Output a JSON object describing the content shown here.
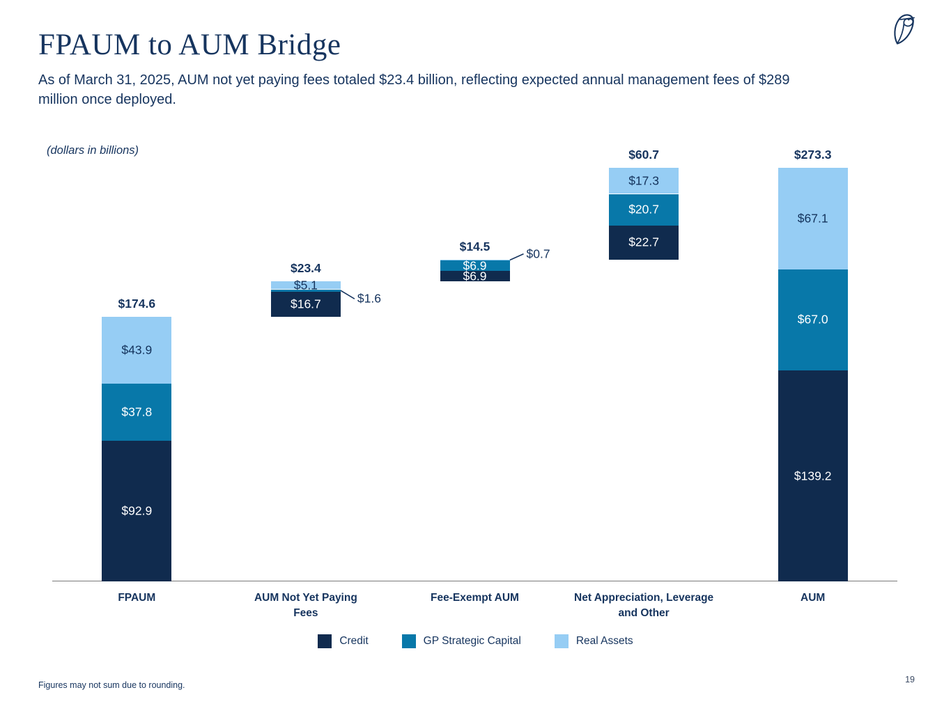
{
  "header": {
    "title": "FPAUM to AUM Bridge",
    "subtitle_lines": [
      "As of March 31, 2025, AUM not yet paying fees totaled $23.4 billion, reflecting expected annual management fees of $289",
      "million once deployed."
    ]
  },
  "chart_data": {
    "type": "bar",
    "variant": "stacked_bridge_waterfall",
    "title": "FPAUM to AUM Bridge",
    "units_note": "(dollars in billions)",
    "grid": false,
    "legend_position": "bottom",
    "ylim": [
      0,
      292
    ],
    "series": [
      {
        "name": "Credit",
        "color": "#102B4E",
        "label_color": "#FFFFFF"
      },
      {
        "name": "GP Strategic Capital",
        "color": "#0878A9",
        "label_color": "#FFFFFF"
      },
      {
        "name": "Real Assets",
        "color": "#96CDF4",
        "label_color": "#14335C"
      }
    ],
    "bars": [
      {
        "category": "FPAUM",
        "category_lines": [
          "FPAUM"
        ],
        "kind": "start",
        "total": 174.6,
        "total_label": "$174.6",
        "segments": [
          {
            "series": "Credit",
            "value": 92.9,
            "label": "$92.9",
            "label_pos": "inside"
          },
          {
            "series": "GP Strategic Capital",
            "value": 37.8,
            "label": "$37.8",
            "label_pos": "inside"
          },
          {
            "series": "Real Assets",
            "value": 43.9,
            "label": "$43.9",
            "label_pos": "inside"
          }
        ]
      },
      {
        "category": "AUM Not Yet Paying Fees",
        "category_lines": [
          "AUM Not Yet Paying",
          "Fees"
        ],
        "kind": "float",
        "total": 23.4,
        "total_label": "$23.4",
        "segments": [
          {
            "series": "Credit",
            "value": 16.7,
            "label": "$16.7",
            "label_pos": "inside"
          },
          {
            "series": "GP Strategic Capital",
            "value": 1.6,
            "label": "$1.6",
            "label_pos": "callout",
            "callout_dx": 20,
            "callout_dy": 12
          },
          {
            "series": "Real Assets",
            "value": 5.1,
            "label": "$5.1",
            "label_pos": "inside"
          }
        ]
      },
      {
        "category": "Fee-Exempt AUM",
        "category_lines": [
          "Fee-Exempt AUM"
        ],
        "kind": "float",
        "total": 14.5,
        "total_label": "$14.5",
        "segments": [
          {
            "series": "Credit",
            "value": 6.9,
            "label": "$6.9",
            "label_pos": "inside"
          },
          {
            "series": "GP Strategic Capital",
            "value": 6.9,
            "label": "$6.9",
            "label_pos": "inside"
          },
          {
            "series": "Real Assets",
            "value": 0.7,
            "label": "$0.7",
            "label_pos": "callout",
            "callout_dx": 20,
            "callout_dy": -9
          }
        ]
      },
      {
        "category": "Net Appreciation, Leverage and Other",
        "category_lines": [
          "Net Appreciation, Leverage",
          "and Other"
        ],
        "kind": "float",
        "total": 60.7,
        "total_label": "$60.7",
        "segments": [
          {
            "series": "Credit",
            "value": 22.7,
            "label": "$22.7",
            "label_pos": "inside"
          },
          {
            "series": "GP Strategic Capital",
            "value": 20.7,
            "label": "$20.7",
            "label_pos": "inside"
          },
          {
            "series": "Real Assets",
            "value": 17.3,
            "label": "$17.3",
            "label_pos": "inside"
          }
        ]
      },
      {
        "category": "AUM",
        "category_lines": [
          "AUM"
        ],
        "kind": "total",
        "total": 273.3,
        "total_label": "$273.3",
        "segments": [
          {
            "series": "Credit",
            "value": 139.2,
            "label": "$139.2",
            "label_pos": "inside"
          },
          {
            "series": "GP Strategic Capital",
            "value": 67.0,
            "label": "$67.0",
            "label_pos": "inside"
          },
          {
            "series": "Real Assets",
            "value": 67.1,
            "label": "$67.1",
            "label_pos": "inside"
          }
        ]
      }
    ]
  },
  "footer": {
    "note": "Figures may not sum due to rounding.",
    "page_number": "19"
  }
}
